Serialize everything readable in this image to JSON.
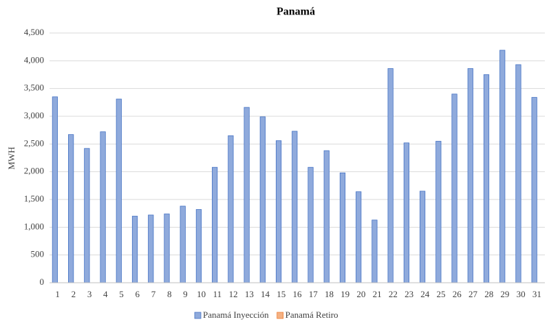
{
  "chart_data": {
    "type": "bar",
    "title": "Panamá",
    "y_label": "MWH",
    "categories": [
      "1",
      "2",
      "3",
      "4",
      "5",
      "6",
      "7",
      "8",
      "9",
      "10",
      "11",
      "12",
      "13",
      "14",
      "15",
      "16",
      "17",
      "18",
      "19",
      "20",
      "21",
      "22",
      "23",
      "24",
      "25",
      "26",
      "27",
      "28",
      "29",
      "30",
      "31"
    ],
    "series": [
      {
        "name": "Panamá Inyección",
        "color": "#8faadc",
        "values": [
          3350,
          2670,
          2420,
          2720,
          3310,
          1200,
          1220,
          1240,
          1380,
          1320,
          2080,
          2650,
          3160,
          2990,
          2560,
          2730,
          2080,
          2380,
          1980,
          1640,
          1130,
          3860,
          2520,
          1650,
          2550,
          3400,
          3860,
          3750,
          4190,
          3930,
          3340
        ]
      },
      {
        "name": "Panamá Retiro",
        "color": "#f4b183",
        "values": [
          0,
          0,
          0,
          0,
          0,
          0,
          0,
          0,
          0,
          0,
          0,
          0,
          0,
          0,
          0,
          0,
          0,
          0,
          0,
          0,
          0,
          0,
          0,
          0,
          0,
          0,
          0,
          0,
          0,
          0,
          0
        ]
      }
    ],
    "ylim": [
      0,
      4500
    ],
    "yticks": [
      0,
      {
        "value": 500,
        "label": "500"
      },
      {
        "value": 1000,
        "label": "1,000"
      },
      {
        "value": 1500,
        "label": "1,500"
      },
      {
        "value": 2000,
        "label": "2,000"
      },
      {
        "value": 2500,
        "label": "2,500"
      },
      {
        "value": 3000,
        "label": "3,000"
      },
      {
        "value": 3500,
        "label": "3,500"
      },
      {
        "value": 4000,
        "label": "4,000"
      },
      {
        "value": 4500,
        "label": "4,500"
      }
    ],
    "grid": true,
    "legend": "bottom"
  }
}
